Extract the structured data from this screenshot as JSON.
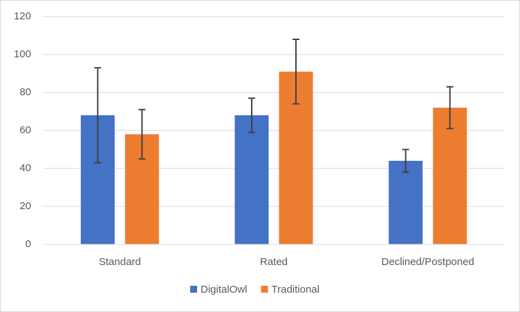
{
  "chart_data": {
    "type": "bar",
    "categories": [
      "Standard",
      "Rated",
      "Declined/Postponed"
    ],
    "series": [
      {
        "name": "DigitalOwl",
        "color": "#4472c4",
        "values": [
          68,
          68,
          44
        ],
        "errors": [
          25,
          9,
          6
        ]
      },
      {
        "name": "Traditional",
        "color": "#ed7d31",
        "values": [
          58,
          91,
          72
        ],
        "errors": [
          13,
          17,
          11
        ]
      }
    ],
    "ylim": [
      0,
      120
    ],
    "yticks": [
      0,
      20,
      40,
      60,
      80,
      100,
      120
    ],
    "grid": true,
    "legend": "bottom"
  }
}
